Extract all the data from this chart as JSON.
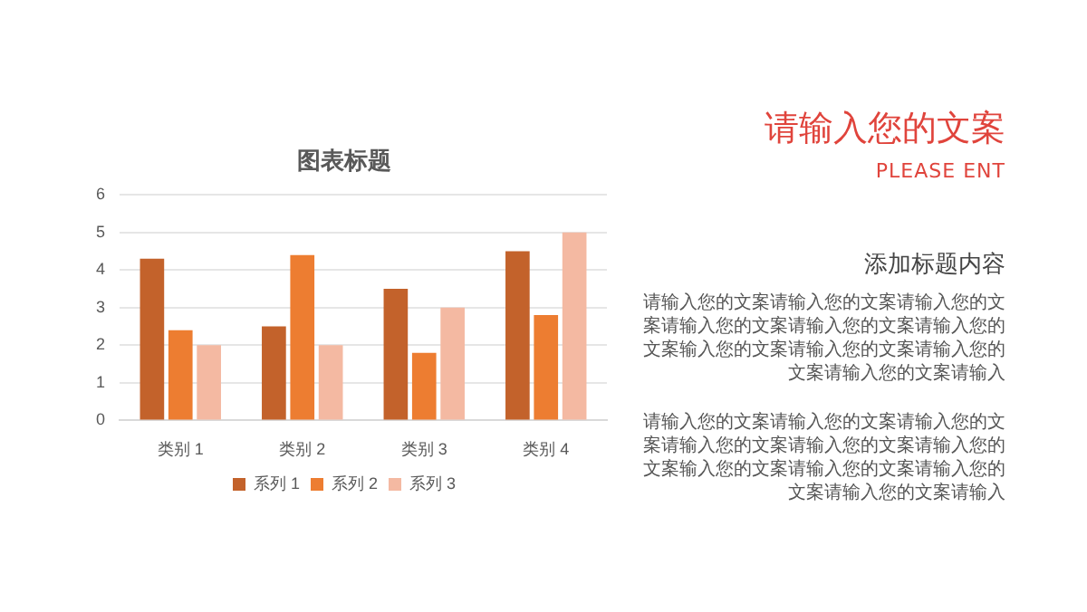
{
  "chart_data": {
    "type": "bar",
    "title": "图表标题",
    "categories": [
      "类别 1",
      "类别 2",
      "类别 3",
      "类别 4"
    ],
    "series": [
      {
        "name": "系列 1",
        "color": "#c3622b",
        "values": [
          4.3,
          2.5,
          3.5,
          4.5
        ]
      },
      {
        "name": "系列 2",
        "color": "#ed7d31",
        "values": [
          2.4,
          4.4,
          1.8,
          2.8
        ]
      },
      {
        "name": "系列 3",
        "color": "#f4b9a2",
        "values": [
          2,
          2,
          3,
          5
        ]
      }
    ],
    "ylim": [
      0,
      6
    ],
    "yticks": [
      0,
      1,
      2,
      3,
      4,
      5,
      6
    ],
    "grid": "y",
    "legend": "bottom",
    "annotations": [
      "请输入您的文案",
      "PLEASE ENT",
      "添加标题内容",
      "请输入您的文案请输入您的文案请输入您的文案请输入您的文案请输入您的文案请输入您的文案输入您的文案请输入您的文案请输入您的文案请输入您的文案请输入",
      "请输入您的文案请输入您的文案请输入您的文案请输入您的文案请输入您的文案请输入您的文案输入您的文案请输入您的文案请输入您的文案请输入您的文案请输入"
    ]
  }
}
